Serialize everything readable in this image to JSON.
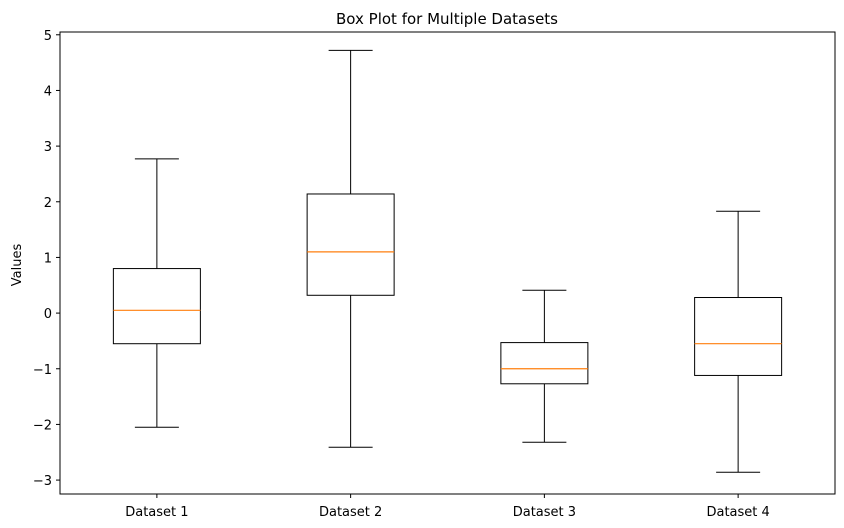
{
  "chart_data": {
    "type": "box",
    "title": "Box Plot for Multiple Datasets",
    "xlabel": "",
    "ylabel": "Values",
    "ylim": [
      -3.25,
      5.05
    ],
    "yticks": [
      -3,
      -2,
      -1,
      0,
      1,
      2,
      3,
      4,
      5
    ],
    "ytick_labels": [
      "−3",
      "−2",
      "−1",
      "0",
      "1",
      "2",
      "3",
      "4",
      "5"
    ],
    "categories": [
      "Dataset 1",
      "Dataset 2",
      "Dataset 3",
      "Dataset 4"
    ],
    "boxes": [
      {
        "whisker_low": -2.05,
        "q1": -0.55,
        "median": 0.05,
        "q3": 0.8,
        "whisker_high": 2.77
      },
      {
        "whisker_low": -2.41,
        "q1": 0.32,
        "median": 1.1,
        "q3": 2.14,
        "whisker_high": 4.72
      },
      {
        "whisker_low": -2.32,
        "q1": -1.27,
        "median": -1.0,
        "q3": -0.53,
        "whisker_high": 0.41
      },
      {
        "whisker_low": -2.86,
        "q1": -1.12,
        "median": -0.55,
        "q3": 0.28,
        "whisker_high": 1.83
      }
    ],
    "grid": false,
    "colors": {
      "box": "#000000",
      "median": "#ff7f0e",
      "background": "#ffffff"
    }
  }
}
